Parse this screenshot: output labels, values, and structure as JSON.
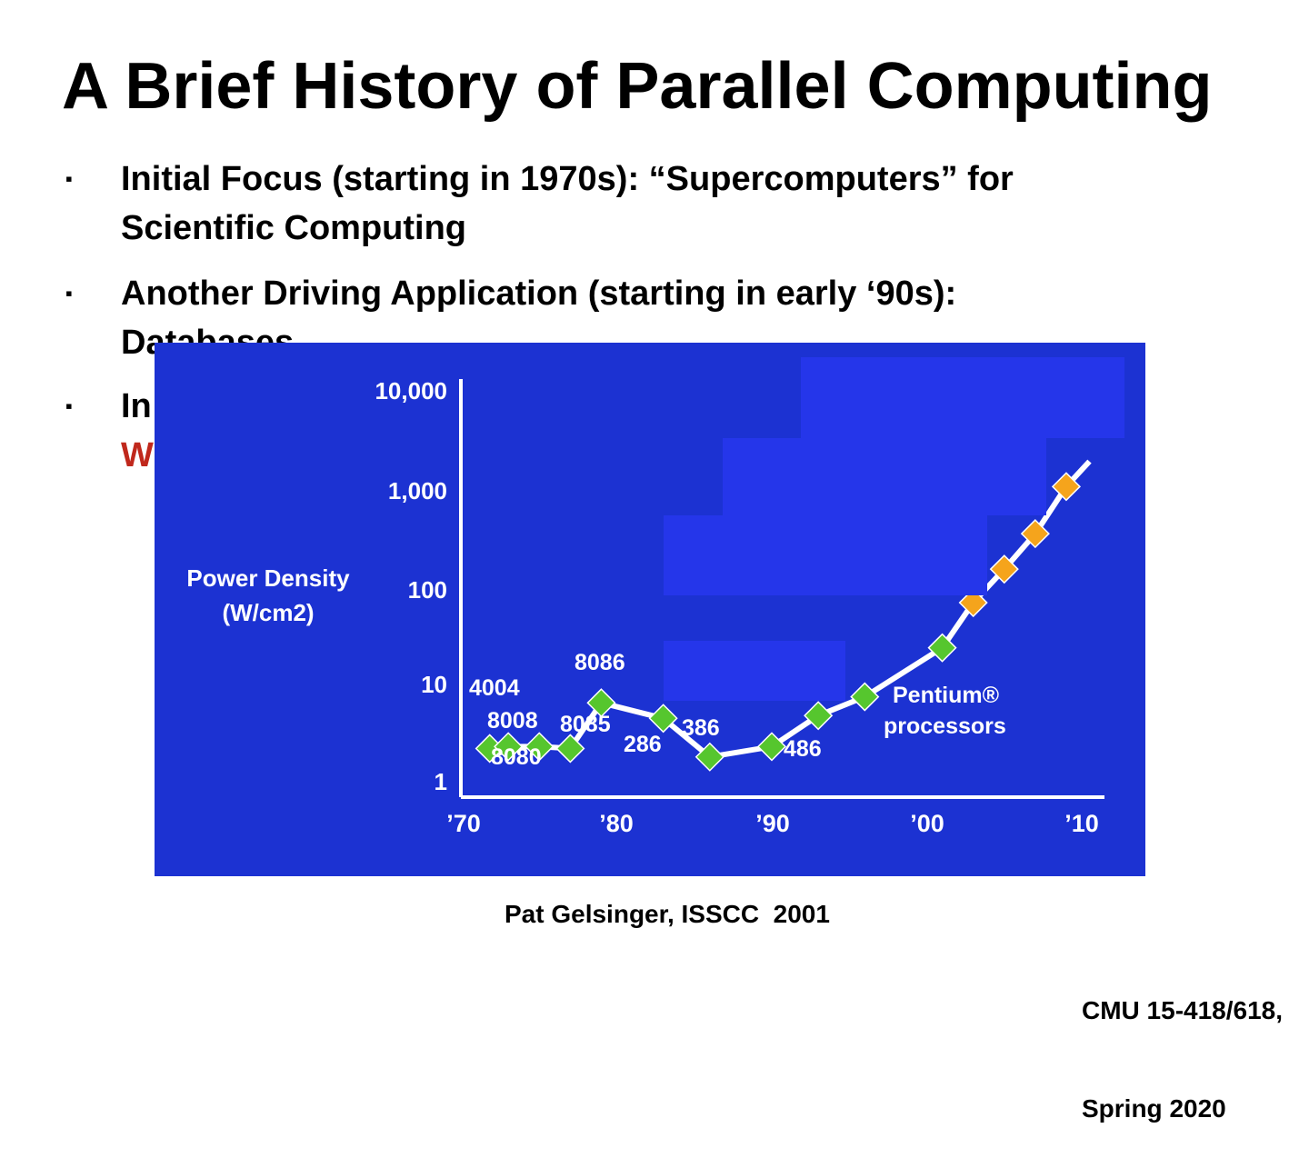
{
  "slide": {
    "title": "A Brief History of Parallel Computing",
    "bullets": [
      {
        "marker": "▪",
        "line1": "Initial Focus (starting in 1970s): “Supercomputers” for",
        "line2": "Scientific Computing"
      },
      {
        "marker": "▪",
        "line1": "Another Driving Application (starting in early ‘90s):",
        "line2": "Databases"
      },
      {
        "marker": "▪",
        "line1": "In",
        "line2": "W"
      }
    ],
    "caption": "Pat Gelsinger, ISSCC  2001",
    "footer_line1": "CMU 15-418/618,",
    "footer_line2": "Spring 2020"
  },
  "colors": {
    "chart_background": "#1c32d2",
    "mask": "#2536ea",
    "green_marker": "#56c62e",
    "orange_marker": "#f5a41c",
    "line": "#ffffff",
    "accent_red": "#c0281c"
  },
  "chart_data": {
    "type": "line",
    "scale": "log",
    "ylabel": "Power Density\n(W/cm2)",
    "ylim": [
      1,
      10000
    ],
    "xlim": [
      1970,
      2010
    ],
    "x_ticks": [
      "’70",
      "’80",
      "’90",
      "’00",
      "’10"
    ],
    "y_ticks": [
      "1",
      "10",
      "100",
      "1,000",
      "10,000"
    ],
    "grid": false,
    "series": [
      {
        "points": [
          {
            "x": 1971.8,
            "y": 2.2,
            "color": "green"
          },
          {
            "x": 1973,
            "y": 2.3,
            "color": "green"
          },
          {
            "x": 1975,
            "y": 2.3,
            "color": "green"
          },
          {
            "x": 1977,
            "y": 2.2,
            "color": "green"
          },
          {
            "x": 1979,
            "y": 6.5,
            "color": "green"
          },
          {
            "x": 1983,
            "y": 4.5,
            "color": "green"
          },
          {
            "x": 1986,
            "y": 1.8,
            "color": "green"
          },
          {
            "x": 1990,
            "y": 2.3,
            "color": "green"
          },
          {
            "x": 1993,
            "y": 4.8,
            "color": "green"
          },
          {
            "x": 1996,
            "y": 7.5,
            "color": "green"
          },
          {
            "x": 2001,
            "y": 24,
            "color": "green"
          },
          {
            "x": 2003,
            "y": 70,
            "color": "orange"
          },
          {
            "x": 2005,
            "y": 155,
            "color": "orange"
          },
          {
            "x": 2007,
            "y": 360,
            "color": "orange"
          },
          {
            "x": 2009,
            "y": 1100,
            "color": "orange"
          },
          {
            "x": 2010.5,
            "y": 2000,
            "color": "none"
          }
        ]
      }
    ],
    "annotations": [
      "4004",
      "8008",
      "8080",
      "8085",
      "8086",
      "286",
      "386",
      "486",
      "Pentium®",
      "processors"
    ]
  }
}
